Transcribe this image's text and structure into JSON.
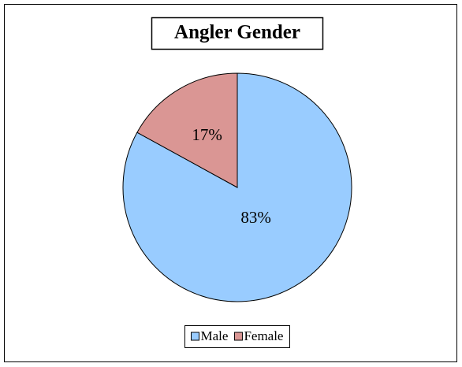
{
  "chart_data": {
    "type": "pie",
    "title": "Angler Gender",
    "categories": [
      "Male",
      "Female"
    ],
    "values": [
      83,
      17
    ],
    "value_labels": [
      "83%",
      "17%"
    ],
    "colors": [
      "#99ccff",
      "#da9694"
    ],
    "legend": "bottom"
  }
}
